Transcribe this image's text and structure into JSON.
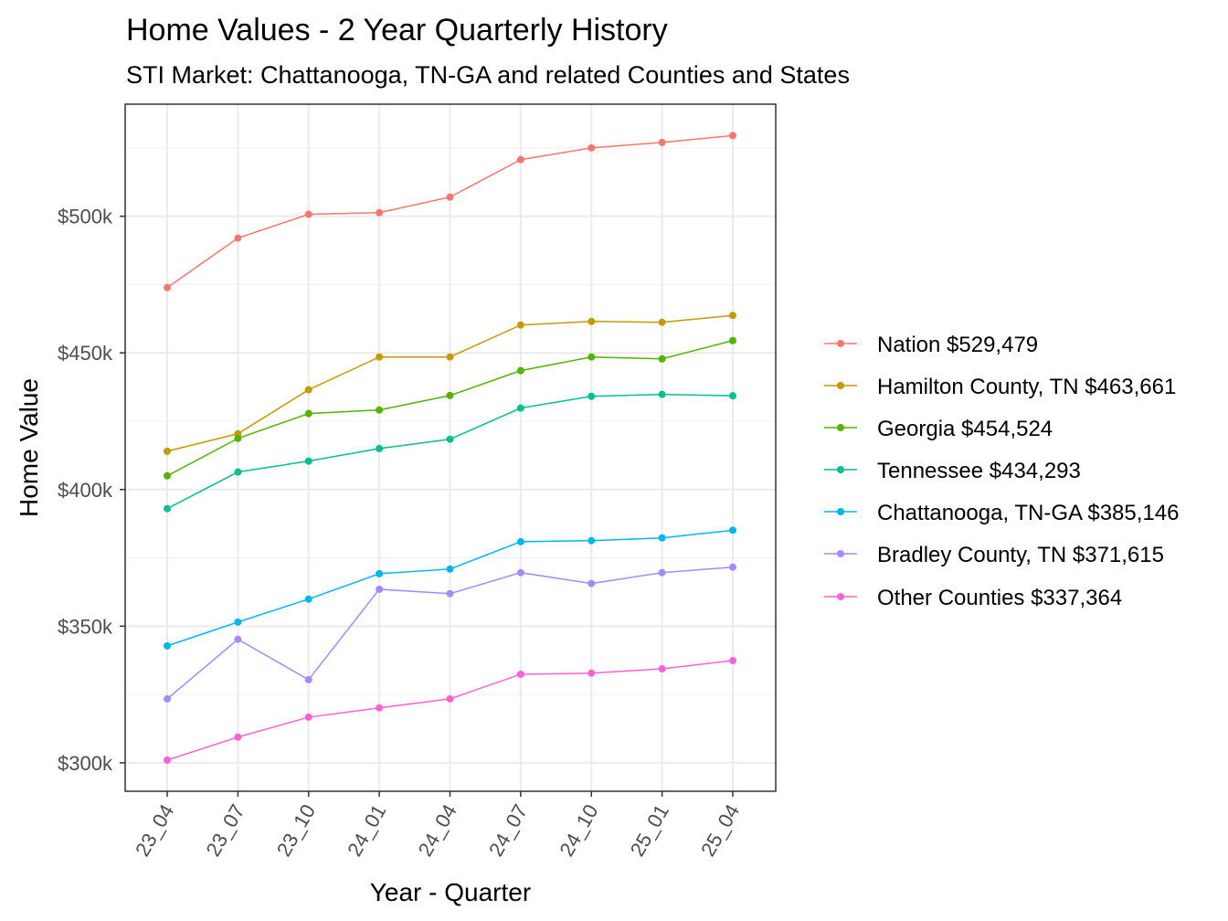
{
  "chart_data": {
    "type": "line",
    "title": "Home Values - 2 Year Quarterly History",
    "subtitle": "STI Market: Chattanooga, TN-GA and related Counties and States",
    "xlabel": "Year - Quarter",
    "ylabel": "Home Value",
    "categories": [
      "23_04",
      "23_07",
      "23_10",
      "24_01",
      "24_04",
      "24_07",
      "24_10",
      "25_01",
      "25_04"
    ],
    "ylim": [
      289.6,
      541
    ],
    "y_unit": "thousands USD",
    "y_ticks": [
      300,
      350,
      400,
      450,
      500
    ],
    "y_tick_labels": [
      "$300k",
      "$350k",
      "$400k",
      "$450k",
      "$500k"
    ],
    "grid": true,
    "legend_position": "right",
    "series": [
      {
        "name": "Nation $529,479",
        "color": "#F8766D",
        "values": [
          473.9,
          492,
          500.7,
          501.3,
          507,
          520.7,
          525,
          527,
          529.5
        ]
      },
      {
        "name": "Hamilton County, TN $463,661",
        "color": "#C49A00",
        "values": [
          414,
          420.4,
          436.5,
          448.5,
          448.5,
          460.2,
          461.5,
          461.2,
          463.7
        ]
      },
      {
        "name": "Georgia $454,524",
        "color": "#53B400",
        "values": [
          405,
          418.7,
          427.8,
          429.1,
          434.4,
          443.5,
          448.5,
          447.8,
          454.5
        ]
      },
      {
        "name": "Tennessee $434,293",
        "color": "#00C094",
        "values": [
          393,
          406.4,
          410.4,
          415,
          418.4,
          429.8,
          434.1,
          434.8,
          434.3
        ]
      },
      {
        "name": "Chattanooga, TN-GA $385,146",
        "color": "#00B6EB",
        "values": [
          342.8,
          351.5,
          359.9,
          369.2,
          370.9,
          380.9,
          381.3,
          382.3,
          385.1
        ]
      },
      {
        "name": "Bradley County, TN $371,615",
        "color": "#A58AFF",
        "values": [
          323.4,
          345.2,
          330.4,
          363.5,
          361.9,
          369.6,
          365.6,
          369.6,
          371.6
        ]
      },
      {
        "name": "Other Counties $337,364",
        "color": "#FB61D7",
        "values": [
          301,
          309.4,
          316.7,
          320.1,
          323.4,
          332.4,
          332.8,
          334.4,
          337.4
        ]
      }
    ]
  }
}
